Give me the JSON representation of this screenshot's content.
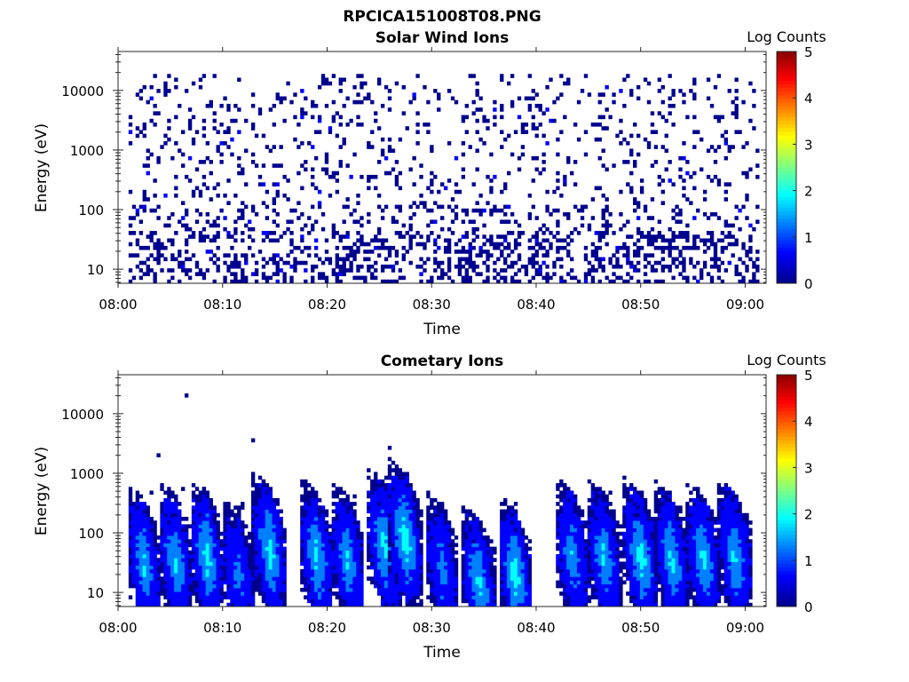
{
  "figure_title": "RPCICA151008T08.PNG",
  "colormap": [
    "#00008f",
    "#0000ff",
    "#0080ff",
    "#00ffff",
    "#80ff80",
    "#ffff00",
    "#ff8000",
    "#ff0000",
    "#800000"
  ],
  "chart_data": [
    {
      "type": "heatmap",
      "title": "Solar Wind Ions",
      "xlabel": "Time",
      "ylabel": "Energy (eV)",
      "xlim": [
        "08:00",
        "09:02"
      ],
      "xticks": [
        "08:00",
        "08:10",
        "08:20",
        "08:30",
        "08:40",
        "08:50",
        "09:00"
      ],
      "yscale": "log",
      "ylim": [
        5.8,
        45000
      ],
      "yticks": [
        10,
        100,
        1000,
        10000
      ],
      "ytick_labels": [
        "10",
        "100",
        "1000",
        "10000"
      ],
      "colorbar": {
        "label": "Log Counts",
        "range": [
          0,
          5
        ],
        "ticks": [
          "0",
          "1",
          "2",
          "3",
          "4",
          "5"
        ]
      },
      "pattern": {
        "description": "sparse single-count pixels across all energies, denser at low energy",
        "typical_log_counts": 0,
        "time_span": [
          1.0,
          61.0
        ],
        "energy_span": [
          6.0,
          12000
        ]
      }
    },
    {
      "type": "heatmap",
      "title": "Cometary Ions",
      "xlabel": "Time",
      "ylabel": "Energy (eV)",
      "xlim": [
        "08:00",
        "09:02"
      ],
      "xticks": [
        "08:00",
        "08:10",
        "08:20",
        "08:30",
        "08:40",
        "08:50",
        "09:00"
      ],
      "yscale": "log",
      "ylim": [
        5.8,
        45000
      ],
      "yticks": [
        10,
        100,
        1000,
        10000
      ],
      "ytick_labels": [
        "10",
        "100",
        "1000",
        "10000"
      ],
      "colorbar": {
        "label": "Log Counts",
        "range": [
          0,
          5
        ],
        "ticks": [
          "0",
          "1",
          "2",
          "3",
          "4",
          "5"
        ]
      },
      "bursts": [
        {
          "t": 2.5,
          "peak_energy": 30,
          "peak_log_counts": 1.7
        },
        {
          "t": 5.5,
          "peak_energy": 35,
          "peak_log_counts": 1.8
        },
        {
          "t": 8.5,
          "peak_energy": 40,
          "peak_log_counts": 2.0
        },
        {
          "t": 11.5,
          "peak_energy": 20,
          "peak_log_counts": 1.3
        },
        {
          "t": 14.5,
          "peak_energy": 50,
          "peak_log_counts": 2.0
        },
        {
          "t": 19.0,
          "peak_energy": 40,
          "peak_log_counts": 1.9
        },
        {
          "t": 22.0,
          "peak_energy": 35,
          "peak_log_counts": 1.7
        },
        {
          "t": 25.5,
          "peak_energy": 60,
          "peak_log_counts": 2.0
        },
        {
          "t": 27.5,
          "peak_energy": 80,
          "peak_log_counts": 2.2
        },
        {
          "t": 31.0,
          "peak_energy": 25,
          "peak_log_counts": 1.3
        },
        {
          "t": 34.5,
          "peak_energy": 15,
          "peak_log_counts": 1.9
        },
        {
          "t": 38.0,
          "peak_energy": 20,
          "peak_log_counts": 2.1
        },
        {
          "t": 43.5,
          "peak_energy": 40,
          "peak_log_counts": 1.6
        },
        {
          "t": 46.5,
          "peak_energy": 40,
          "peak_log_counts": 1.8
        },
        {
          "t": 50.0,
          "peak_energy": 40,
          "peak_log_counts": 2.1
        },
        {
          "t": 53.0,
          "peak_energy": 35,
          "peak_log_counts": 1.9
        },
        {
          "t": 56.0,
          "peak_energy": 35,
          "peak_log_counts": 1.9
        },
        {
          "t": 59.0,
          "peak_energy": 40,
          "peak_log_counts": 1.8
        }
      ],
      "isolated_points": [
        {
          "t": 4.0,
          "energy": 1900
        },
        {
          "t": 6.5,
          "energy": 20000
        },
        {
          "t": 12.8,
          "energy": 3600
        },
        {
          "t": 25.9,
          "energy": 2600
        }
      ]
    }
  ]
}
